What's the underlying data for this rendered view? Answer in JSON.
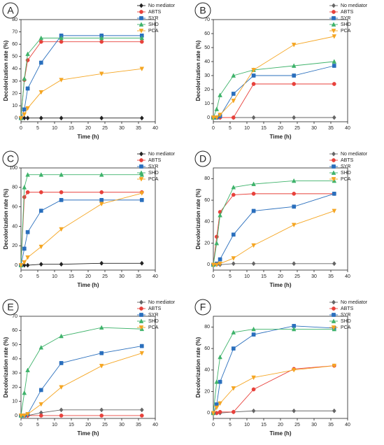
{
  "chart_data": [
    {
      "type": "line",
      "label": "A",
      "xlabel": "Time (h)",
      "ylabel": "Decolorization rate (%)",
      "legend": "upper right",
      "x": [
        0,
        1,
        2,
        6,
        12,
        24,
        36
      ],
      "xlim": [
        0,
        40
      ],
      "xticks": [
        0,
        5,
        10,
        15,
        20,
        25,
        30,
        35,
        40
      ],
      "ylim": [
        -3,
        80
      ],
      "yticks": [
        0,
        10,
        20,
        30,
        40,
        50,
        60,
        70,
        80
      ],
      "series": [
        {
          "name": "No mediator",
          "color": "#222222",
          "marker": "diamond",
          "values": [
            0,
            0,
            0,
            0,
            0,
            0,
            0
          ]
        },
        {
          "name": "ABTS",
          "color": "#e8413b",
          "marker": "circle",
          "values": [
            0,
            31,
            47,
            62,
            62,
            62,
            62
          ]
        },
        {
          "name": "SYR",
          "color": "#2a6fbd",
          "marker": "square",
          "values": [
            0,
            7,
            24,
            45,
            67,
            67,
            67
          ]
        },
        {
          "name": "SHD",
          "color": "#3fb36b",
          "marker": "triangle",
          "values": [
            0,
            32,
            52,
            65,
            65,
            65,
            65
          ]
        },
        {
          "name": "PCA",
          "color": "#f5a623",
          "marker": "triangle-down",
          "values": [
            0,
            3,
            8,
            21,
            31,
            36,
            40
          ]
        }
      ]
    },
    {
      "type": "line",
      "label": "B",
      "xlabel": "Time (h)",
      "ylabel": "Decolorization rate (%)",
      "legend": "upper right",
      "x": [
        0,
        1,
        2,
        6,
        12,
        24,
        36
      ],
      "xlim": [
        0,
        40
      ],
      "xticks": [
        0,
        5,
        10,
        15,
        20,
        25,
        30,
        35,
        40
      ],
      "ylim": [
        -3,
        70
      ],
      "yticks": [
        0,
        10,
        20,
        30,
        40,
        50,
        60,
        70
      ],
      "series": [
        {
          "name": "No mediator",
          "color": "#666666",
          "marker": "diamond",
          "values": [
            0,
            0,
            0,
            0,
            0,
            0,
            0
          ]
        },
        {
          "name": "ABTS",
          "color": "#e8413b",
          "marker": "circle",
          "values": [
            0,
            0,
            0,
            0,
            24,
            24,
            24
          ]
        },
        {
          "name": "SYR",
          "color": "#2a6fbd",
          "marker": "square",
          "values": [
            0,
            0,
            1,
            17,
            30,
            30,
            37
          ]
        },
        {
          "name": "SHD",
          "color": "#3fb36b",
          "marker": "triangle",
          "values": [
            0,
            6,
            16,
            30,
            34,
            37,
            40
          ]
        },
        {
          "name": "PCA",
          "color": "#f5a623",
          "marker": "triangle-down",
          "values": [
            0,
            0,
            2,
            12,
            34,
            52,
            58
          ]
        }
      ]
    },
    {
      "type": "line",
      "label": "C",
      "xlabel": "Time (h)",
      "ylabel": "Decolorization rate (%)",
      "legend": "upper right",
      "x": [
        0,
        1,
        2,
        6,
        12,
        24,
        36
      ],
      "xlim": [
        0,
        40
      ],
      "xticks": [
        0,
        5,
        10,
        15,
        20,
        25,
        30,
        35,
        40
      ],
      "ylim": [
        -5,
        100
      ],
      "yticks": [
        0,
        20,
        40,
        60,
        80,
        100
      ],
      "series": [
        {
          "name": "No mediator",
          "color": "#222222",
          "marker": "diamond",
          "values": [
            0,
            0,
            0,
            1,
            1,
            2,
            2
          ]
        },
        {
          "name": "ABTS",
          "color": "#e8413b",
          "marker": "circle",
          "values": [
            0,
            70,
            75,
            75,
            75,
            75,
            75
          ]
        },
        {
          "name": "SYR",
          "color": "#2a6fbd",
          "marker": "square",
          "values": [
            0,
            17,
            34,
            56,
            67,
            67,
            67
          ]
        },
        {
          "name": "SHD",
          "color": "#3fb36b",
          "marker": "triangle",
          "values": [
            0,
            80,
            93,
            93,
            93,
            93,
            93
          ]
        },
        {
          "name": "PCA",
          "color": "#f5a623",
          "marker": "triangle-down",
          "values": [
            0,
            3,
            8,
            19,
            37,
            63,
            74
          ]
        }
      ]
    },
    {
      "type": "line",
      "label": "D",
      "xlabel": "Time (h)",
      "ylabel": "Decolorization rate (%)",
      "legend": "upper right",
      "x": [
        0,
        1,
        2,
        6,
        12,
        24,
        36
      ],
      "xlim": [
        0,
        40
      ],
      "xticks": [
        0,
        5,
        10,
        15,
        20,
        25,
        30,
        35,
        40
      ],
      "ylim": [
        -5,
        90
      ],
      "yticks": [
        0,
        20,
        40,
        60,
        80
      ],
      "series": [
        {
          "name": "No mediator",
          "color": "#666666",
          "marker": "diamond",
          "values": [
            0,
            0,
            0,
            1,
            1,
            1,
            1
          ]
        },
        {
          "name": "ABTS",
          "color": "#e8413b",
          "marker": "circle",
          "values": [
            0,
            26,
            49,
            65,
            66,
            66,
            66
          ]
        },
        {
          "name": "SYR",
          "color": "#2a6fbd",
          "marker": "square",
          "values": [
            0,
            1,
            5,
            28,
            50,
            54,
            66
          ]
        },
        {
          "name": "SHD",
          "color": "#3fb36b",
          "marker": "triangle",
          "values": [
            0,
            20,
            46,
            72,
            75,
            78,
            78
          ]
        },
        {
          "name": "PCA",
          "color": "#f5a623",
          "marker": "triangle-down",
          "values": [
            0,
            0,
            1,
            6,
            18,
            37,
            50
          ]
        }
      ]
    },
    {
      "type": "line",
      "label": "E",
      "xlabel": "Time (h)",
      "ylabel": "Decolorization rate (%)",
      "legend": "upper right",
      "x": [
        0,
        1,
        2,
        6,
        12,
        24,
        36
      ],
      "xlim": [
        0,
        40
      ],
      "xticks": [
        0,
        5,
        10,
        15,
        20,
        25,
        30,
        35,
        40
      ],
      "ylim": [
        -2,
        70
      ],
      "yticks": [
        0,
        10,
        20,
        30,
        40,
        50,
        60,
        70
      ],
      "series": [
        {
          "name": "No mediator",
          "color": "#666666",
          "marker": "diamond",
          "values": [
            0,
            0,
            0,
            2,
            4,
            4,
            4
          ]
        },
        {
          "name": "ABTS",
          "color": "#e8413b",
          "marker": "circle",
          "values": [
            0,
            0,
            0,
            0,
            0,
            0,
            0
          ]
        },
        {
          "name": "SYR",
          "color": "#2a6fbd",
          "marker": "square",
          "values": [
            0,
            0,
            1,
            18,
            37,
            44,
            49
          ]
        },
        {
          "name": "SHD",
          "color": "#3fb36b",
          "marker": "triangle",
          "values": [
            0,
            16,
            32,
            48,
            56,
            62,
            61
          ]
        },
        {
          "name": "PCA",
          "color": "#f5a623",
          "marker": "triangle-down",
          "values": [
            0,
            0,
            1,
            8,
            20,
            35,
            44
          ]
        }
      ]
    },
    {
      "type": "line",
      "label": "F",
      "xlabel": "Time (h)",
      "ylabel": "Decolorization rate (%)",
      "legend": "upper right",
      "x": [
        0,
        1,
        2,
        6,
        12,
        24,
        36
      ],
      "xlim": [
        0,
        40
      ],
      "xticks": [
        0,
        5,
        10,
        15,
        20,
        25,
        30,
        35,
        40
      ],
      "ylim": [
        -5,
        90
      ],
      "yticks": [
        0,
        20,
        40,
        60,
        80
      ],
      "series": [
        {
          "name": "No mediator",
          "color": "#666666",
          "marker": "diamond",
          "values": [
            0,
            0,
            0,
            1,
            2,
            2,
            2
          ]
        },
        {
          "name": "ABTS",
          "color": "#e8413b",
          "marker": "circle",
          "values": [
            0,
            0,
            1,
            1,
            22,
            41,
            44
          ]
        },
        {
          "name": "SYR",
          "color": "#2a6fbd",
          "marker": "square",
          "values": [
            0,
            8,
            29,
            60,
            73,
            81,
            79
          ]
        },
        {
          "name": "SHD",
          "color": "#3fb36b",
          "marker": "triangle",
          "values": [
            0,
            29,
            52,
            75,
            78,
            78,
            78
          ]
        },
        {
          "name": "PCA",
          "color": "#f5a623",
          "marker": "triangle-down",
          "values": [
            0,
            5,
            9,
            23,
            33,
            40,
            44
          ]
        }
      ]
    }
  ]
}
